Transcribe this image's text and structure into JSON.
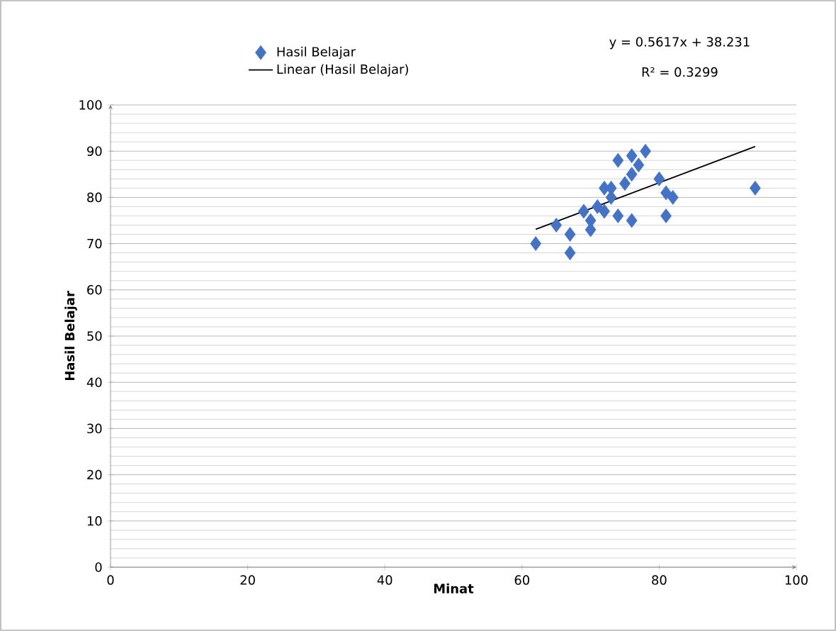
{
  "chart_data": {
    "type": "scatter",
    "xlabel": "Minat",
    "ylabel": "Hasil Belajar",
    "annotations": [
      "y = 0.5617x + 38.231",
      "R² = 0.3299"
    ],
    "series": [
      {
        "name": "Hasil Belajar",
        "color": "#4472c4",
        "marker": "diamond",
        "x": [
          62,
          65,
          67,
          67,
          70,
          69,
          71,
          72,
          73,
          73,
          74,
          74,
          76,
          75,
          76,
          77,
          78,
          76,
          80,
          81,
          82,
          81,
          94,
          72,
          70
        ],
        "values": [
          70,
          74,
          68,
          72,
          73,
          77,
          78,
          77,
          80,
          82,
          76,
          88,
          75,
          83,
          85,
          87,
          90,
          89,
          84,
          81,
          80,
          76,
          82,
          82,
          75
        ]
      },
      {
        "name": "Linear (Hasil Belajar)",
        "type": "line",
        "color": "#000000",
        "marker": "none",
        "x": [
          62,
          94
        ],
        "values": [
          73.1,
          91.0
        ]
      }
    ],
    "xlim": [
      0,
      100
    ],
    "ylim": [
      0,
      100
    ],
    "xticks": [
      0,
      20,
      40,
      60,
      80,
      100
    ],
    "yticks": [
      0,
      10,
      20,
      30,
      40,
      50,
      60,
      70,
      80,
      90,
      100
    ],
    "grid": "y",
    "legend": "top"
  }
}
